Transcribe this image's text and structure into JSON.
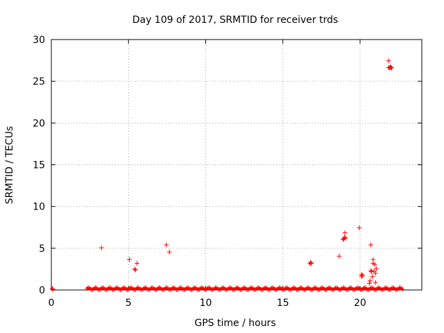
{
  "chart_data": {
    "type": "scatter",
    "title": "Day 109 of 2017, SRMTID for receiver trds",
    "xlabel": "GPS time / hours",
    "ylabel": "SRMTID / TECUs",
    "xlim": [
      0,
      24
    ],
    "ylim": [
      0,
      30
    ],
    "xticks": [
      0,
      5,
      10,
      15,
      20
    ],
    "yticks": [
      0,
      5,
      10,
      15,
      20,
      25,
      30
    ],
    "grid": true,
    "marker": "+",
    "marker_color": "#ff0000",
    "baseline_band": {
      "x_start": 2.3,
      "x_end": 22.8,
      "y_low": 0.0,
      "y_high": 0.3
    },
    "points": [
      [
        0.05,
        0.15
      ],
      [
        0.1,
        0.1
      ],
      [
        3.25,
        5.05
      ],
      [
        5.05,
        3.65
      ],
      [
        5.4,
        2.5
      ],
      [
        5.45,
        2.4
      ],
      [
        5.55,
        3.2
      ],
      [
        7.45,
        5.4
      ],
      [
        7.65,
        4.55
      ],
      [
        16.75,
        3.15
      ],
      [
        16.8,
        3.3
      ],
      [
        16.85,
        3.2
      ],
      [
        18.65,
        4.05
      ],
      [
        18.9,
        6.05
      ],
      [
        18.95,
        6.15
      ],
      [
        19.0,
        6.3
      ],
      [
        19.05,
        6.2
      ],
      [
        19.02,
        6.85
      ],
      [
        19.95,
        7.45
      ],
      [
        20.1,
        1.85
      ],
      [
        20.1,
        1.6
      ],
      [
        20.15,
        1.75
      ],
      [
        20.6,
        0.8
      ],
      [
        20.65,
        1.1
      ],
      [
        20.7,
        2.3
      ],
      [
        20.7,
        5.4
      ],
      [
        20.8,
        1.6
      ],
      [
        20.85,
        3.2
      ],
      [
        20.85,
        3.65
      ],
      [
        20.9,
        2.25
      ],
      [
        20.95,
        3.05
      ],
      [
        21.0,
        2.0
      ],
      [
        21.05,
        2.55
      ],
      [
        21.0,
        0.9
      ],
      [
        20.75,
        2.2
      ],
      [
        21.85,
        27.45
      ],
      [
        21.85,
        26.65
      ],
      [
        21.9,
        26.6
      ],
      [
        21.95,
        26.7
      ],
      [
        22.0,
        26.65
      ],
      [
        22.05,
        26.6
      ]
    ]
  }
}
